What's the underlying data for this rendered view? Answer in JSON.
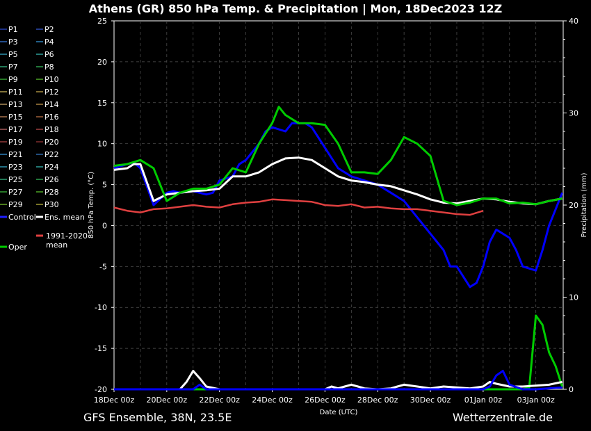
{
  "title": "Athens  (GR)  850 hPa Temp. & Precipitation | Mon, 18Dec2023 12Z",
  "footer_left": "GFS Ensemble, 38N, 23.5E",
  "footer_right": "Wetterzentrale.de",
  "colors": {
    "background": "#000000",
    "control": "#0000ff",
    "ens_mean": "#ffffff",
    "climate_mean": "#e04040",
    "oper": "#00cc00"
  },
  "chart_data": {
    "type": "line",
    "title": "Athens  (GR)  850 hPa Temp. & Precipitation | Mon, 18Dec2023 12Z",
    "xlabel": "Date (UTC)",
    "ylabel": "850 hPa Temp. (°C)",
    "y2label": "Precipitation (mm)",
    "x_hours_range": [
      0,
      408
    ],
    "x_ticks": [
      {
        "h": 0,
        "label": "18Dec 00z"
      },
      {
        "h": 48,
        "label": "20Dec 00z"
      },
      {
        "h": 96,
        "label": "22Dec 00z"
      },
      {
        "h": 144,
        "label": "24Dec 00z"
      },
      {
        "h": 192,
        "label": "26Dec 00z"
      },
      {
        "h": 240,
        "label": "28Dec 00z"
      },
      {
        "h": 288,
        "label": "30Dec 00z"
      },
      {
        "h": 336,
        "label": "01Jan 00z"
      },
      {
        "h": 384,
        "label": "03Jan 00z"
      }
    ],
    "ylim": [
      -20,
      25
    ],
    "y_ticks": [
      "-20",
      "-15",
      "-10",
      "-5",
      "0",
      "5",
      "10",
      "15",
      "20",
      "25"
    ],
    "y2lim": [
      0,
      40
    ],
    "y2_ticks": [
      "0",
      "10",
      "20",
      "30",
      "40"
    ],
    "grid": true,
    "legend_position": "left",
    "legend": [
      "P1",
      "P2",
      "P3",
      "P4",
      "P5",
      "P6",
      "P7",
      "P8",
      "P9",
      "P10",
      "P11",
      "P12",
      "P13",
      "P14",
      "P15",
      "P16",
      "P17",
      "P18",
      "P19",
      "P20",
      "P21",
      "P22",
      "P23",
      "P24",
      "P25",
      "P26",
      "P27",
      "P28",
      "P29",
      "P30",
      "Control",
      "Ens. mean",
      "1991-2020 mean",
      "Oper"
    ],
    "legend_colors": [
      "#2f4fd8",
      "#3a5fe0",
      "#3a7fe8",
      "#3aa0e8",
      "#3ab8d8",
      "#3ac8c0",
      "#3ac890",
      "#3ac860",
      "#40c840",
      "#60d030",
      "#d8c060",
      "#d0b050",
      "#d8b070",
      "#d0a050",
      "#d09060",
      "#c87848",
      "#d07070",
      "#c85050",
      "#b84848",
      "#a03838",
      "#3aa0e8",
      "#3a80d0",
      "#3ab8d8",
      "#3ac8c0",
      "#3ac890",
      "#3ac860",
      "#40c840",
      "#60d030",
      "#80d030",
      "#c8c040",
      "#2020ff",
      "#ffffff",
      "#e04040",
      "#00cc00"
    ],
    "series": [
      {
        "name": "Control",
        "unit": "°C",
        "x": [
          0,
          12,
          18,
          24,
          36,
          48,
          54,
          60,
          72,
          84,
          90,
          96,
          108,
          114,
          120,
          132,
          138,
          144,
          156,
          162,
          168,
          174,
          180,
          192,
          204,
          210,
          216,
          228,
          240,
          252,
          264,
          276,
          288,
          300,
          306,
          312,
          324,
          330,
          336,
          342,
          348,
          360,
          366,
          372,
          384,
          390,
          396,
          402,
          408
        ],
        "y": [
          7,
          7.5,
          7.7,
          7,
          2.5,
          4,
          4.2,
          4,
          4.2,
          3.8,
          4,
          5.5,
          6,
          7.5,
          8,
          10,
          11.5,
          12,
          11.5,
          12.5,
          12.5,
          12.5,
          12,
          9.5,
          7,
          6.5,
          6,
          5.5,
          5,
          4,
          3,
          1,
          -1,
          -3,
          -5,
          -5,
          -7.5,
          -7,
          -5,
          -2,
          -0.5,
          -1.5,
          -3,
          -5,
          -5.5,
          -3,
          0,
          2,
          4
        ]
      },
      {
        "name": "Ens. mean",
        "unit": "°C",
        "x": [
          0,
          12,
          18,
          24,
          36,
          48,
          60,
          72,
          84,
          96,
          108,
          120,
          132,
          144,
          156,
          168,
          180,
          192,
          204,
          216,
          228,
          240,
          252,
          264,
          276,
          288,
          300,
          312,
          324,
          336,
          348,
          360,
          372,
          384,
          396,
          408
        ],
        "y": [
          6.8,
          7,
          7.5,
          7.5,
          3,
          3.8,
          4,
          4.2,
          4.3,
          4.5,
          6,
          6,
          6.5,
          7.5,
          8.2,
          8.3,
          8,
          7,
          6,
          5.5,
          5.3,
          5,
          4.8,
          4.3,
          3.8,
          3.2,
          2.8,
          2.7,
          3,
          3.3,
          3.2,
          2.9,
          2.7,
          2.6,
          3,
          3.3
        ]
      },
      {
        "name": "1991-2020 mean",
        "unit": "°C",
        "x": [
          0,
          12,
          24,
          36,
          48,
          60,
          72,
          84,
          96,
          108,
          120,
          132,
          144,
          156,
          168,
          180,
          192,
          204,
          216,
          228,
          240,
          252,
          264,
          276,
          288,
          300,
          312,
          324,
          336
        ],
        "y": [
          2.2,
          1.8,
          1.6,
          2,
          2.1,
          2.3,
          2.5,
          2.3,
          2.2,
          2.6,
          2.8,
          2.9,
          3.2,
          3.1,
          3.0,
          2.9,
          2.5,
          2.4,
          2.6,
          2.2,
          2.3,
          2.1,
          2.0,
          2.0,
          1.8,
          1.6,
          1.4,
          1.3,
          1.8
        ]
      },
      {
        "name": "Oper",
        "unit": "°C",
        "x": [
          0,
          12,
          24,
          36,
          48,
          60,
          72,
          84,
          96,
          108,
          120,
          132,
          144,
          150,
          156,
          168,
          180,
          192,
          204,
          216,
          228,
          240,
          252,
          264,
          276,
          288,
          300,
          312,
          324,
          336,
          348,
          360,
          372,
          384,
          396,
          408
        ],
        "y": [
          7.3,
          7.5,
          8,
          7,
          3,
          4,
          4.5,
          4.5,
          5,
          7,
          6.5,
          10,
          12.5,
          14.5,
          13.5,
          12.5,
          12.5,
          12.3,
          10,
          6.5,
          6.5,
          6.3,
          8,
          10.8,
          10,
          8.5,
          3,
          2.5,
          2.8,
          3.3,
          3.3,
          2.7,
          2.8,
          2.6,
          3,
          3.3
        ]
      },
      {
        "name": "Oper precipitation",
        "unit": "mm",
        "x": [
          0,
          48,
          72,
          84,
          90,
          96,
          108,
          144,
          192,
          240,
          288,
          312,
          336,
          360,
          372,
          378,
          384,
          390,
          396,
          402,
          408
        ],
        "y": [
          0,
          0,
          0,
          0,
          0,
          0,
          0,
          0,
          0,
          0,
          0,
          0,
          0,
          0,
          0,
          0.2,
          8,
          7,
          4,
          2.5,
          0.3
        ]
      },
      {
        "name": "Ens. mean precipitation",
        "unit": "mm",
        "x": [
          0,
          48,
          60,
          66,
          72,
          78,
          84,
          96,
          108,
          144,
          192,
          198,
          204,
          210,
          216,
          222,
          228,
          240,
          252,
          258,
          264,
          276,
          288,
          300,
          312,
          324,
          336,
          342,
          348,
          360,
          372,
          384,
          396,
          408
        ],
        "y": [
          0,
          0,
          0,
          0.8,
          2,
          1.2,
          0.3,
          0,
          0,
          0,
          0,
          0.3,
          0.1,
          0.3,
          0.5,
          0.3,
          0.1,
          0,
          0.1,
          0.3,
          0.5,
          0.3,
          0.1,
          0.3,
          0.2,
          0.1,
          0.3,
          0.8,
          0.6,
          0.3,
          0.3,
          0.4,
          0.5,
          0.8
        ]
      },
      {
        "name": "Control precipitation",
        "unit": "mm",
        "x": [
          0,
          72,
          78,
          84,
          90,
          96,
          336,
          342,
          348,
          354,
          360,
          372,
          384,
          408
        ],
        "y": [
          0,
          0,
          0.5,
          0,
          0,
          0,
          0,
          0.3,
          1.5,
          2,
          0.5,
          0,
          0,
          0.2
        ]
      }
    ]
  }
}
